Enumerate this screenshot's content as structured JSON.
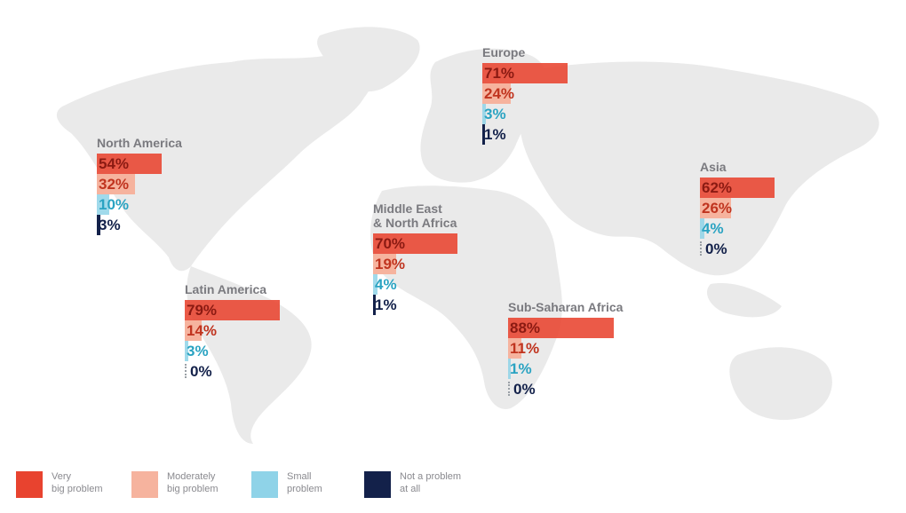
{
  "colors": {
    "very_big": "#e8432f",
    "moderately_big": "#f6b39e",
    "small": "#8fd3e8",
    "not_problem": "#13214a",
    "map": "#eaeaea",
    "title": "#7a7a7f"
  },
  "chart_data": {
    "type": "bar",
    "orientation": "horizontal",
    "series_names": [
      "Very big problem",
      "Moderately big problem",
      "Small problem",
      "Not a problem at all"
    ],
    "value_max": 100,
    "regions": [
      {
        "name": "North America",
        "values": [
          54,
          32,
          10,
          3
        ],
        "labels": [
          "54%",
          "32%",
          "10%",
          "3%"
        ]
      },
      {
        "name": "Europe",
        "values": [
          71,
          24,
          3,
          1
        ],
        "labels": [
          "71%",
          "24%",
          "3%",
          "1%"
        ]
      },
      {
        "name": "Asia",
        "values": [
          62,
          26,
          4,
          0
        ],
        "labels": [
          "62%",
          "26%",
          "4%",
          "0%"
        ]
      },
      {
        "name": "Middle East\n& North Africa",
        "values": [
          70,
          19,
          4,
          1
        ],
        "labels": [
          "70%",
          "19%",
          "4%",
          "1%"
        ]
      },
      {
        "name": "Latin America",
        "values": [
          79,
          14,
          3,
          0
        ],
        "labels": [
          "79%",
          "14%",
          "3%",
          "0%"
        ]
      },
      {
        "name": "Sub-Saharan Africa",
        "values": [
          88,
          11,
          1,
          0
        ],
        "labels": [
          "88%",
          "11%",
          "1%",
          "0%"
        ]
      }
    ]
  },
  "legend": [
    {
      "label": "Very\nbig problem",
      "color": "#e8432f"
    },
    {
      "label": "Moderately\nbig problem",
      "color": "#f6b39e"
    },
    {
      "label": "Small\nproblem",
      "color": "#8fd3e8"
    },
    {
      "label": "Not a problem\nat all",
      "color": "#13214a"
    }
  ]
}
